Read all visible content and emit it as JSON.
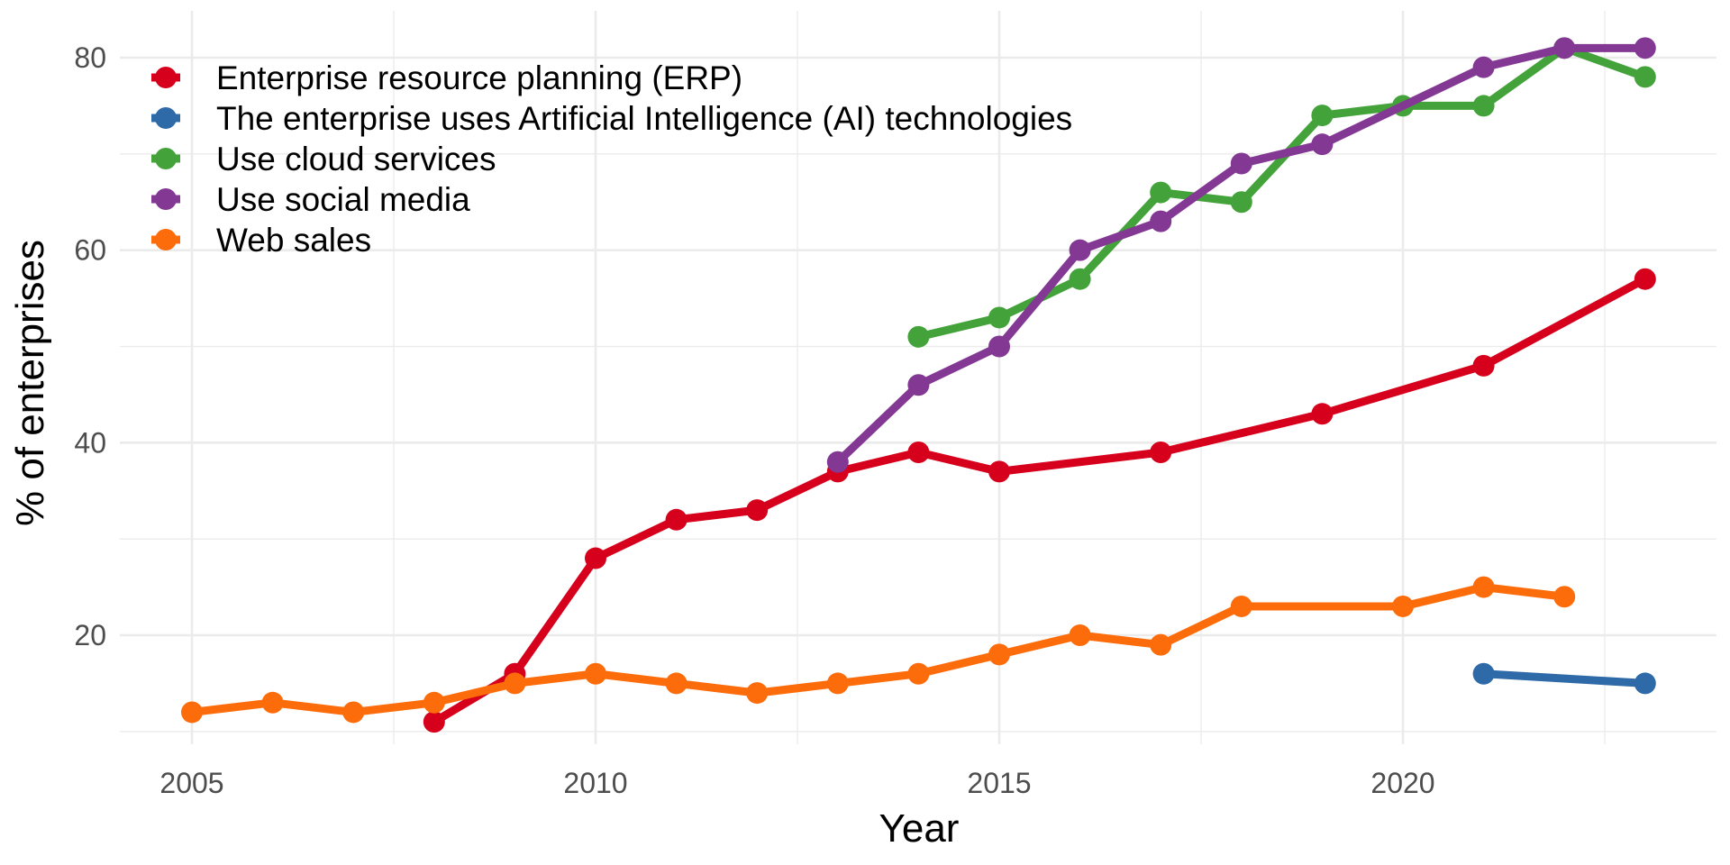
{
  "chart_data": {
    "type": "line",
    "title": "",
    "xlabel": "Year",
    "ylabel": "% of enterprises",
    "xlim": [
      2004.6,
      2023.6
    ],
    "ylim": [
      8.6,
      84.5
    ],
    "x_ticks": [
      2005,
      2010,
      2015,
      2020
    ],
    "x_minor_ticks": [
      2007.5,
      2012.5,
      2017.5,
      2022.5
    ],
    "y_ticks": [
      20,
      40,
      60,
      80
    ],
    "y_minor_ticks": [
      10,
      30,
      50,
      70
    ],
    "grid": true,
    "legend_position": "top-left",
    "series": [
      {
        "name": "Enterprise resource planning (ERP)",
        "color": "#d7001c",
        "x": [
          2008,
          2009,
          2010,
          2011,
          2012,
          2013,
          2014,
          2015,
          2017,
          2019,
          2021,
          2023
        ],
        "values": [
          11,
          16,
          28,
          32,
          33,
          37,
          39,
          37,
          39,
          43,
          48,
          57
        ]
      },
      {
        "name": "The enterprise uses Artificial Intelligence (AI) technologies",
        "color": "#2f6aa8",
        "x": [
          2021,
          2023
        ],
        "values": [
          16,
          15
        ]
      },
      {
        "name": "Use cloud services",
        "color": "#43a33a",
        "x": [
          2014,
          2015,
          2016,
          2017,
          2018,
          2019,
          2020,
          2021,
          2022,
          2023
        ],
        "values": [
          51,
          53,
          57,
          66,
          65,
          74,
          75,
          75,
          81,
          78
        ]
      },
      {
        "name": "Use social media",
        "color": "#833893",
        "x": [
          2013,
          2014,
          2015,
          2016,
          2017,
          2018,
          2019,
          2021,
          2022,
          2023
        ],
        "values": [
          38,
          46,
          50,
          60,
          63,
          69,
          71,
          79,
          81,
          81
        ]
      },
      {
        "name": "Web sales",
        "color": "#fd6c0b",
        "x": [
          2005,
          2006,
          2007,
          2008,
          2009,
          2010,
          2011,
          2012,
          2013,
          2014,
          2015,
          2016,
          2017,
          2018,
          2020,
          2021,
          2022
        ],
        "values": [
          12,
          13,
          12,
          13,
          15,
          16,
          15,
          14,
          15,
          16,
          18,
          20,
          19,
          23,
          23,
          25,
          24
        ]
      }
    ]
  }
}
